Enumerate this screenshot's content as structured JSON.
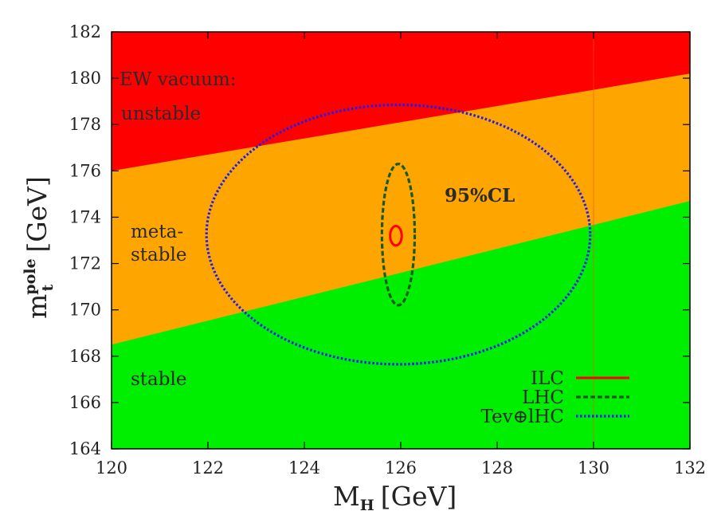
{
  "chart_data": {
    "type": "area",
    "xlabel": "M",
    "xlabel_sub": "H",
    "xlabel_unit": "[GeV]",
    "ylabel": "m",
    "ylabel_sub": "t",
    "ylabel_sup": "pole",
    "ylabel_unit": "[GeV]",
    "xlim": [
      120,
      132
    ],
    "ylim": [
      164,
      182
    ],
    "xticks": [
      "120",
      "122",
      "124",
      "126",
      "128",
      "130",
      "132"
    ],
    "yticks": [
      "164",
      "166",
      "168",
      "170",
      "172",
      "174",
      "176",
      "178",
      "180",
      "182"
    ],
    "grid": false,
    "regions": [
      {
        "name": "unstable",
        "color": "#ff0000",
        "lower_boundary": [
          [
            120,
            176.0
          ],
          [
            132,
            180.2
          ]
        ]
      },
      {
        "name": "metastable",
        "color": "#ffa500",
        "lower_boundary": [
          [
            120,
            168.5
          ],
          [
            132,
            174.7
          ]
        ]
      },
      {
        "name": "stable",
        "color": "#00ee00"
      }
    ],
    "vertical_line": {
      "x": 130,
      "color": "#ff5500"
    },
    "region_labels": {
      "unstable_line1": "EW vacuum:",
      "unstable_line2": "unstable",
      "meta_line1": "meta-",
      "meta_line2": "stable",
      "stable": "stable"
    },
    "annotation": "95%CL",
    "series": [
      {
        "name": "ILC",
        "type": "ellipse",
        "center": [
          125.9,
          173.2
        ],
        "radius": [
          0.12,
          0.42
        ],
        "color": "#ff0000",
        "style": "solid"
      },
      {
        "name": "LHC",
        "type": "ellipse",
        "center": [
          125.95,
          173.25
        ],
        "radius": [
          0.34,
          3.05
        ],
        "color": "#1a5a1a",
        "style": "dashed"
      },
      {
        "name": "Tev⊕lHC",
        "type": "ellipse",
        "center": [
          125.95,
          173.25
        ],
        "radius": [
          3.98,
          5.6
        ],
        "color": "#1a1aff",
        "style": "dotted"
      }
    ],
    "legend_position": "bottom-right"
  }
}
